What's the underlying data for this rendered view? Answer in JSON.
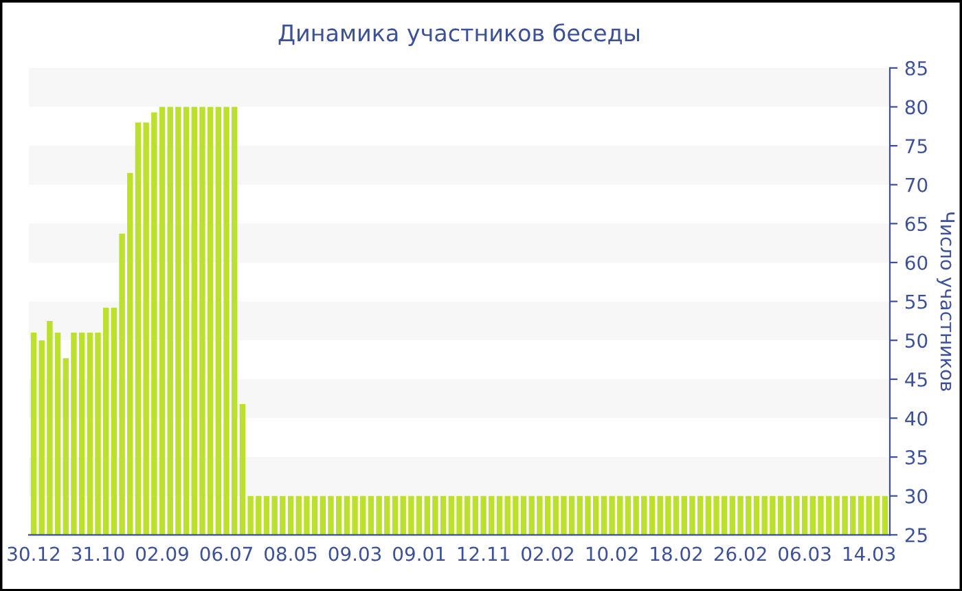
{
  "chart_data": {
    "type": "bar",
    "title": "Динамика участников беседы",
    "ylabel": "Число участников",
    "categories": [
      "30.12",
      null,
      null,
      null,
      null,
      null,
      null,
      null,
      "31.10",
      null,
      null,
      null,
      null,
      null,
      null,
      null,
      "02.09",
      null,
      null,
      null,
      null,
      null,
      null,
      null,
      "06.07",
      null,
      null,
      null,
      null,
      null,
      null,
      null,
      "08.05",
      null,
      null,
      null,
      null,
      null,
      null,
      null,
      "09.03",
      null,
      null,
      null,
      null,
      null,
      null,
      null,
      "09.01",
      null,
      null,
      null,
      null,
      null,
      null,
      null,
      "12.11",
      null,
      null,
      null,
      null,
      null,
      null,
      null,
      "02.02",
      null,
      null,
      null,
      null,
      null,
      null,
      null,
      "10.02",
      null,
      null,
      null,
      null,
      null,
      null,
      null,
      "18.02",
      null,
      null,
      null,
      null,
      null,
      null,
      null,
      "26.02",
      null,
      null,
      null,
      null,
      null,
      null,
      null,
      "06.03",
      null,
      null,
      null,
      null,
      null,
      null,
      null,
      "14.03",
      null,
      null
    ],
    "values": [
      51,
      50,
      52.5,
      51,
      47.7,
      51,
      51,
      51,
      51,
      54.2,
      54.2,
      63.7,
      71.5,
      78,
      78,
      79.3,
      80,
      80,
      80,
      80,
      80,
      80,
      80,
      80,
      80,
      80,
      41.8,
      30,
      30,
      30,
      30,
      30,
      30,
      30,
      30,
      30,
      30,
      30,
      30,
      30,
      30,
      30,
      30,
      30,
      30,
      30,
      30,
      30,
      30,
      30,
      30,
      30,
      30,
      30,
      30,
      30,
      30,
      30,
      30,
      30,
      30,
      30,
      30,
      30,
      30,
      30,
      30,
      30,
      30,
      30,
      30,
      30,
      30,
      30,
      30,
      30,
      30,
      30,
      30,
      30,
      30,
      30,
      30,
      30,
      30,
      30,
      30,
      30,
      30,
      30,
      30,
      30,
      30,
      30,
      30,
      30,
      30,
      30,
      30,
      30,
      30,
      30,
      30,
      30,
      30,
      30,
      30
    ],
    "color": "#bbe02e",
    "ylim": [
      25,
      85
    ],
    "yticks": [
      25,
      30,
      35,
      40,
      45,
      50,
      55,
      60,
      65,
      70,
      75,
      80,
      85
    ],
    "bands": [
      {
        "axis": "y",
        "from": 30,
        "to": 35,
        "color": "#f7f7f7"
      },
      {
        "axis": "y",
        "from": 40,
        "to": 45,
        "color": "#f7f7f7"
      },
      {
        "axis": "y",
        "from": 50,
        "to": 55,
        "color": "#f7f7f7"
      },
      {
        "axis": "y",
        "from": 60,
        "to": 65,
        "color": "#f7f7f7"
      },
      {
        "axis": "y",
        "from": 70,
        "to": 75,
        "color": "#f7f7f7"
      },
      {
        "axis": "y",
        "from": 80,
        "to": 85,
        "color": "#f7f7f7"
      }
    ]
  }
}
